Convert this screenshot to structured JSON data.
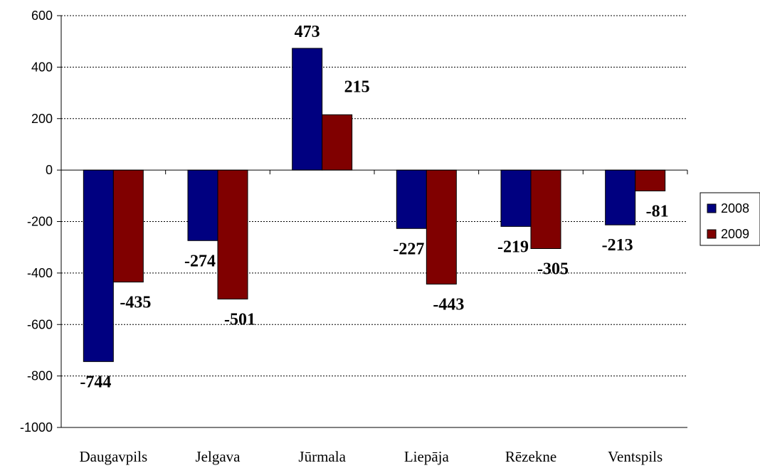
{
  "chart_data": {
    "type": "bar",
    "categories": [
      "Daugavpils",
      "Jelgava",
      "Jūrmala",
      "Liepāja",
      "Rēzekne",
      "Ventspils"
    ],
    "series": [
      {
        "name": "2008",
        "color": "#000080",
        "values": [
          -744,
          -274,
          473,
          -227,
          -219,
          -213
        ]
      },
      {
        "name": "2009",
        "color": "#800000",
        "values": [
          -435,
          -501,
          215,
          -443,
          -305,
          -81
        ]
      }
    ],
    "ylim": [
      -1000,
      600
    ],
    "yticks": [
      600,
      400,
      200,
      0,
      -200,
      -400,
      -600,
      -800,
      -1000
    ],
    "grid": true,
    "legend": "right"
  }
}
